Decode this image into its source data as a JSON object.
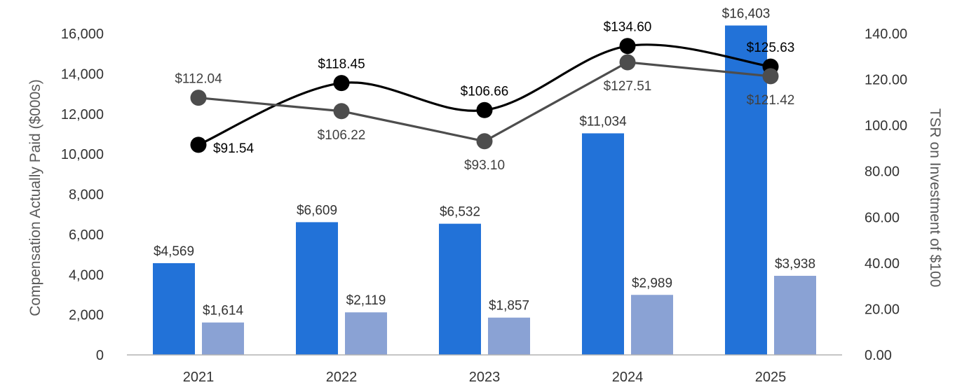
{
  "chart_data": {
    "type": "bar",
    "categories": [
      "2021",
      "2022",
      "2023",
      "2024",
      "2025"
    ],
    "ylabel": "Compensation Actually Paid ($000s)",
    "y2label": "TSR on Investment of $100",
    "ylim": [
      0,
      16000
    ],
    "y2lim": [
      0,
      140
    ],
    "y_ticks": [
      "0",
      "2,000",
      "4,000",
      "6,000",
      "8,000",
      "10,000",
      "12,000",
      "14,000",
      "16,000"
    ],
    "y2_ticks": [
      "0.00",
      "20.00",
      "40.00",
      "60.00",
      "80.00",
      "100.00",
      "120.00",
      "140.00"
    ],
    "grid": false,
    "legend": "none",
    "bar_series": [
      {
        "values": [
          4569,
          6609,
          6532,
          11034,
          16403
        ],
        "labels": [
          "$4,569",
          "$6,609",
          "$6,532",
          "$11,034",
          "$16,403"
        ],
        "color": "#2272d8"
      },
      {
        "values": [
          1614,
          2119,
          1857,
          2989,
          3938
        ],
        "labels": [
          "$1,614",
          "$2,119",
          "$1,857",
          "$2,989",
          "$3,938"
        ],
        "color": "#8aa2d4"
      }
    ],
    "line_series": [
      {
        "axis": "right",
        "values": [
          91.54,
          118.45,
          106.66,
          134.6,
          125.63
        ],
        "labels": [
          "$91.54",
          "$118.45",
          "$106.66",
          "$134.60",
          "$125.63"
        ],
        "color": "#000000",
        "smooth": true
      },
      {
        "axis": "right",
        "values": [
          112.04,
          106.22,
          93.1,
          127.51,
          121.42
        ],
        "labels": [
          "$112.04",
          "$106.22",
          "$93.10",
          "$127.51",
          "$121.42"
        ],
        "color": "#4d4d4d",
        "smooth": false
      }
    ]
  }
}
